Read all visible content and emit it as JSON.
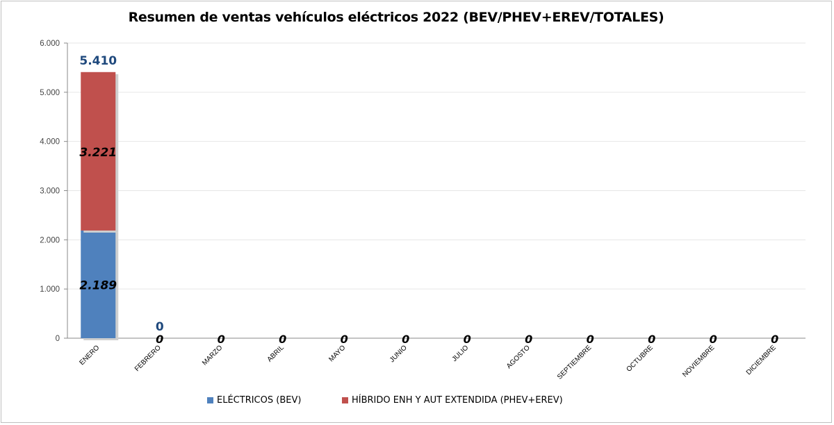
{
  "chart_data": {
    "type": "bar",
    "stacked": true,
    "title": "Resumen de ventas vehículos eléctricos 2022 (BEV/PHEV+EREV/TOTALES)",
    "categories": [
      "ENERO",
      "FEBRERO",
      "MARZO",
      "ABRIL",
      "MAYO",
      "JUNIO",
      "JULIO",
      "AGOSTO",
      "SEPTIEMBRE",
      "OCTUBRE",
      "NOVIEMBRE",
      "DICIEMBRE"
    ],
    "series": [
      {
        "name": "ELÉCTRICOS (BEV)",
        "color": "#4f81bd",
        "values": [
          2189,
          0,
          0,
          0,
          0,
          0,
          0,
          0,
          0,
          0,
          0,
          0
        ],
        "labels": [
          "2.189",
          "0",
          "0",
          "0",
          "0",
          "0",
          "0",
          "0",
          "0",
          "0",
          "0",
          "0"
        ]
      },
      {
        "name": "HÍBRIDO ENH Y AUT EXTENDIDA (PHEV+EREV)",
        "color": "#c0504d",
        "values": [
          3221,
          0,
          0,
          0,
          0,
          0,
          0,
          0,
          0,
          0,
          0,
          0
        ],
        "labels": [
          "3.221",
          "",
          "",
          "",
          "",
          "",
          "",
          "",
          "",
          "",
          "",
          ""
        ]
      }
    ],
    "totals": {
      "values": [
        5410,
        0
      ],
      "labels": [
        "5.410",
        "0"
      ],
      "color": "#1f497d"
    },
    "yticks": [
      "0",
      "1.000",
      "2.000",
      "3.000",
      "4.000",
      "5.000",
      "6.000"
    ],
    "ylim": [
      0,
      6000
    ],
    "grid": true,
    "legend_position": "bottom"
  }
}
